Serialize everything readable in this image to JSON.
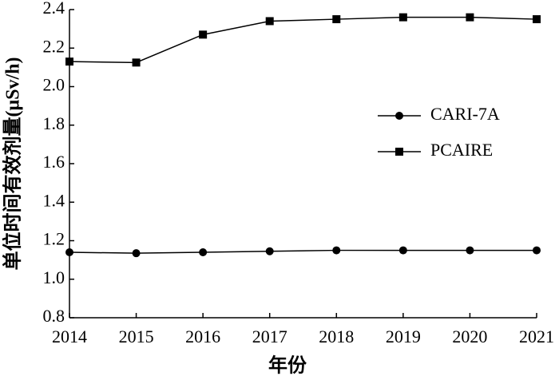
{
  "chart_data": {
    "type": "line",
    "x_label": "年份",
    "y_label": "单位时间有效剂量(μSv/h)",
    "x": [
      2014,
      2015,
      2016,
      2017,
      2018,
      2019,
      2020,
      2021
    ],
    "series": [
      {
        "name": "CARI-7A",
        "color": "#000000",
        "marker": "circle",
        "values": [
          1.14,
          1.135,
          1.14,
          1.145,
          1.15,
          1.15,
          1.15,
          1.15
        ]
      },
      {
        "name": "PCAIRE",
        "color": "#000000",
        "marker": "square",
        "values": [
          2.13,
          2.125,
          2.27,
          2.34,
          2.35,
          2.36,
          2.36,
          2.35
        ]
      }
    ],
    "xlim": [
      2014,
      2021
    ],
    "xticks": [
      2014,
      2015,
      2016,
      2017,
      2018,
      2019,
      2020,
      2021
    ],
    "ylim": [
      0.8,
      2.4
    ],
    "yticks": [
      0.8,
      {
        "value": 1,
        "label": "1.0"
      },
      1.2,
      1.4,
      1.6,
      1.8,
      {
        "value": 2,
        "label": "2.0"
      },
      2.2,
      2.4
    ],
    "grid": false,
    "legend": "center right"
  }
}
